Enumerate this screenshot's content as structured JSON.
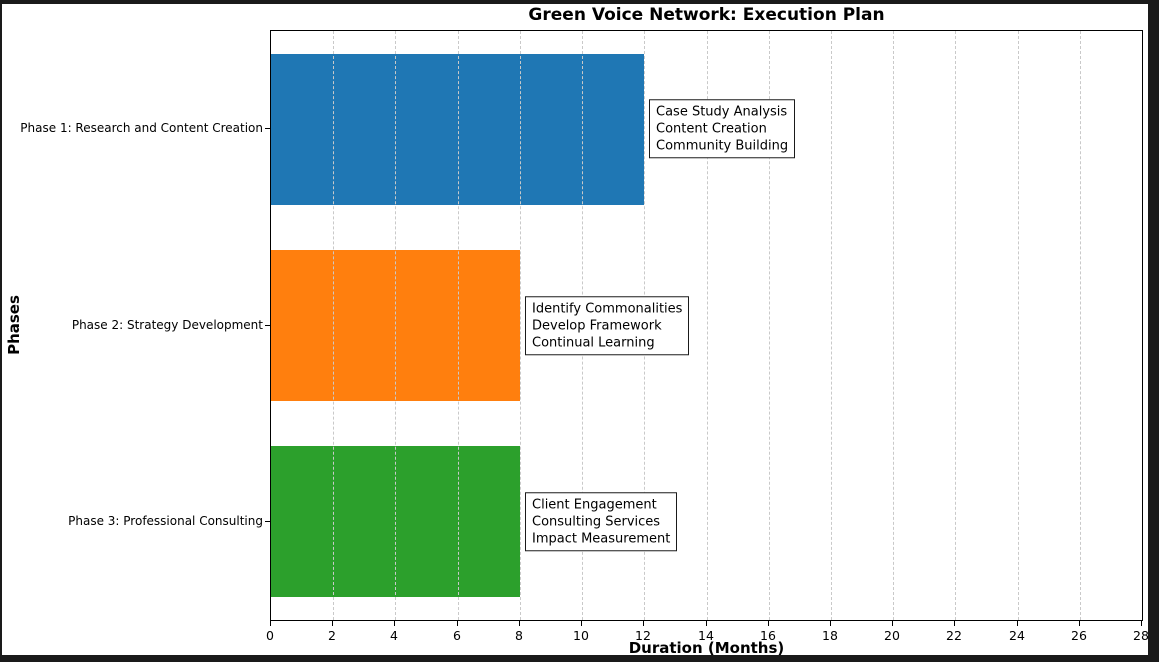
{
  "chart_data": {
    "type": "bar",
    "orientation": "horizontal",
    "title": "Green Voice Network: Execution Plan",
    "xlabel": "Duration (Months)",
    "ylabel": "Phases",
    "xlim": [
      0,
      28
    ],
    "xticks": [
      0,
      2,
      4,
      6,
      8,
      10,
      12,
      14,
      16,
      18,
      20,
      22,
      24,
      26,
      28
    ],
    "grid": "vertical-dashed",
    "legend": "none",
    "categories": [
      "Phase 1: Research and Content Creation",
      "Phase 2: Strategy Development",
      "Phase 3: Professional Consulting"
    ],
    "values": [
      12,
      8,
      8
    ],
    "bar_colors": [
      "#1f77b4",
      "#ff7f0e",
      "#2ca02c"
    ],
    "annotations": [
      {
        "lines": [
          "Case Study Analysis",
          "Content Creation",
          "Community Building"
        ]
      },
      {
        "lines": [
          "Identify Commonalities",
          "Develop Framework",
          "Continual Learning"
        ]
      },
      {
        "lines": [
          "Client Engagement",
          "Consulting Services",
          "Impact Measurement"
        ]
      }
    ]
  }
}
